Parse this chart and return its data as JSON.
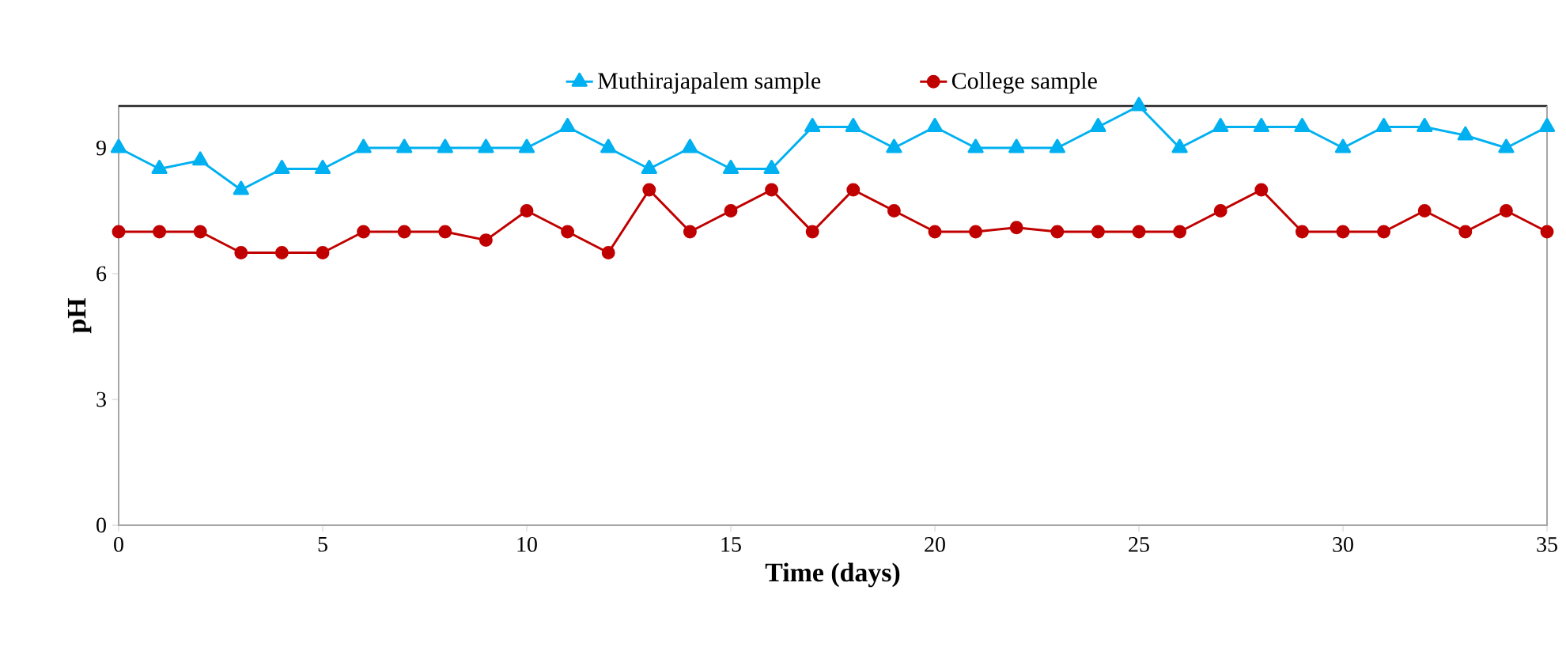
{
  "chart_data": {
    "type": "line",
    "xlabel": "Time (days)",
    "ylabel": "pH",
    "x": [
      0,
      1,
      2,
      3,
      4,
      5,
      6,
      7,
      8,
      9,
      10,
      11,
      12,
      13,
      14,
      15,
      16,
      17,
      18,
      19,
      20,
      21,
      22,
      23,
      24,
      25,
      26,
      27,
      28,
      29,
      30,
      31,
      32,
      33,
      34,
      35
    ],
    "xlim": [
      0,
      35
    ],
    "xticks": [
      0,
      5,
      10,
      15,
      20,
      25,
      30,
      35
    ],
    "ylim": [
      0,
      10
    ],
    "yticks": [
      0,
      3,
      6,
      9
    ],
    "legend": "top",
    "grid": false,
    "line_style": "solid",
    "series": [
      {
        "name": "Muthirajapalem sample",
        "color": "#00b0f0",
        "marker": "triangle",
        "values": [
          9,
          8.5,
          8.7,
          8,
          8.5,
          8.5,
          9,
          9,
          9,
          9,
          9,
          9.5,
          9,
          8.5,
          9,
          8.5,
          8.5,
          9.5,
          9.5,
          9,
          9.5,
          9,
          9,
          9,
          9.5,
          10,
          9,
          9.5,
          9.5,
          9.5,
          9,
          9.5,
          9.5,
          9.3,
          9,
          9.5
        ]
      },
      {
        "name": "College sample",
        "color": "#c00000",
        "marker": "circle",
        "values": [
          7,
          7,
          7,
          6.5,
          6.5,
          6.5,
          7,
          7,
          7,
          6.8,
          7.5,
          7,
          6.5,
          8,
          7,
          7.5,
          8,
          7,
          8,
          7.5,
          7,
          7,
          7.1,
          7,
          7,
          7,
          7,
          7.5,
          8,
          7,
          7,
          7,
          7.5,
          7,
          7.5,
          7
        ]
      }
    ]
  }
}
